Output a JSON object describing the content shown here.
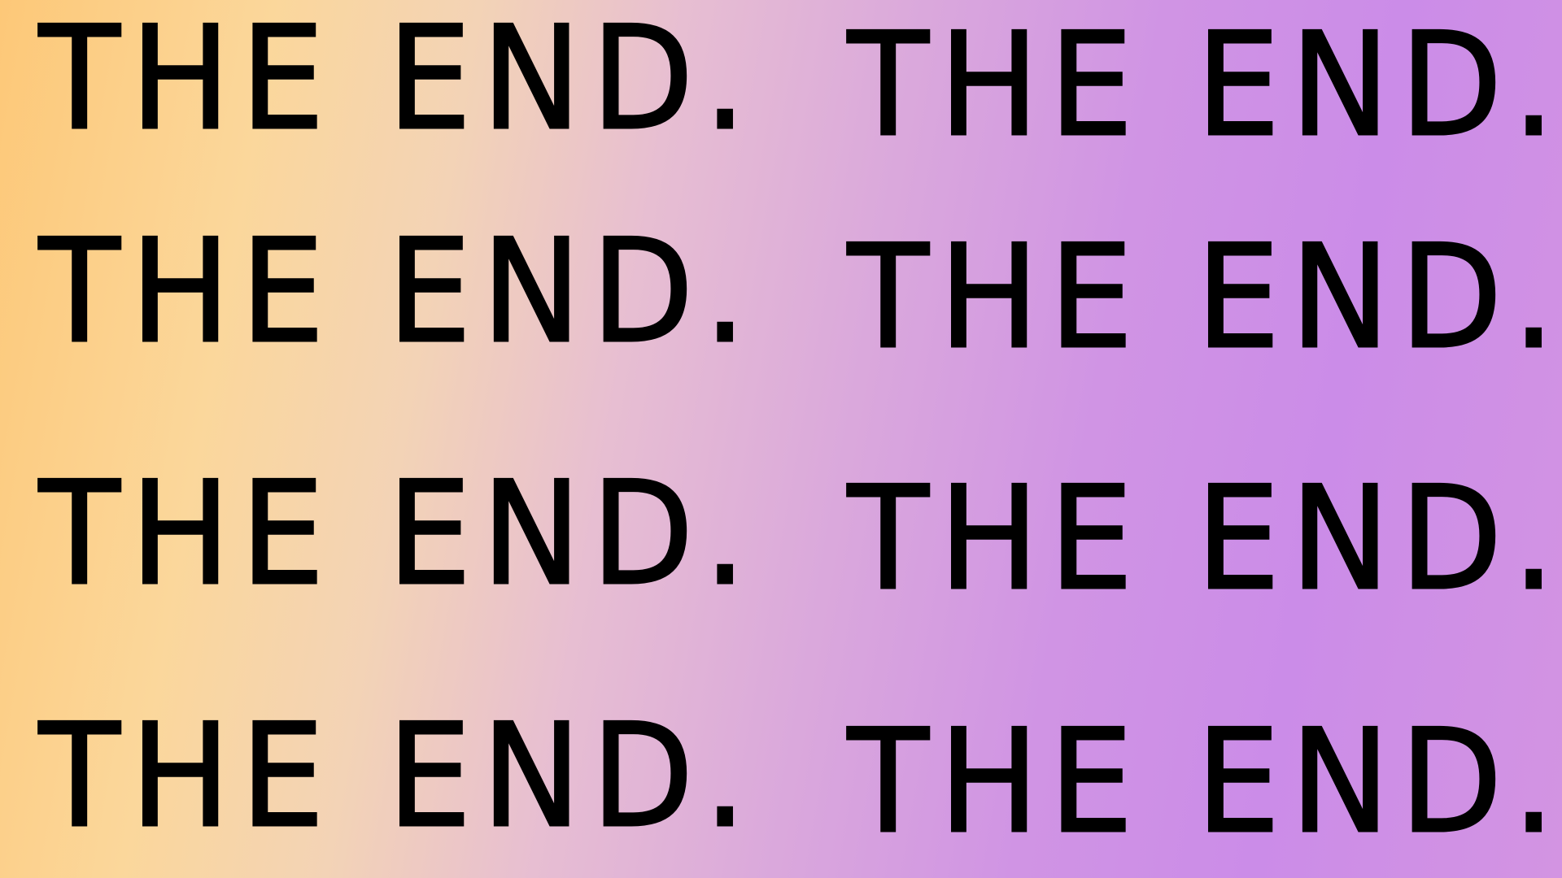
{
  "colors": {
    "text": "#000000",
    "gradient_start": "#fdc878",
    "gradient_mid": "#e7bed2",
    "gradient_end": "#cb8ce8"
  },
  "phrases": [
    "THE END.",
    "THE END.",
    "THE END.",
    "THE END.",
    "THE END.",
    "THE END.",
    "THE END.",
    "THE END."
  ]
}
